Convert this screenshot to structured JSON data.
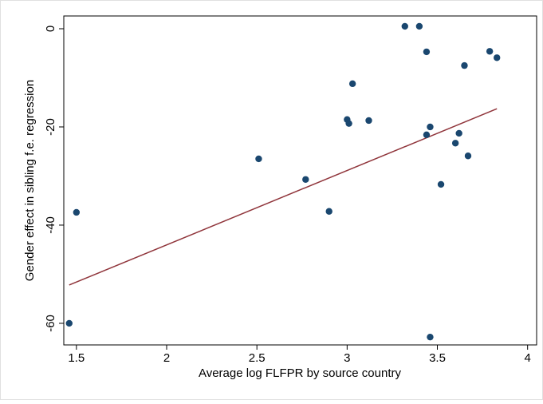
{
  "chart_data": {
    "type": "scatter",
    "x_label": "Average log FLFPR by source country",
    "y_label": "Gender effect in sibling f.e. regression",
    "xlim": [
      1.43,
      4.05
    ],
    "ylim": [
      -64.4,
      2.6
    ],
    "xticks": [
      1.5,
      2,
      2.5,
      3,
      3.5,
      4
    ],
    "yticks": [
      0,
      -20,
      -40,
      -60
    ],
    "points": {
      "color": "#1a476f",
      "x": [
        1.5,
        1.46,
        2.51,
        2.77,
        2.9,
        3.0,
        3.01,
        3.03,
        3.12,
        3.32,
        3.4,
        3.44,
        3.44,
        3.46,
        3.46,
        3.52,
        3.6,
        3.62,
        3.65,
        3.67,
        3.79,
        3.83
      ],
      "values": [
        -37.4,
        -60,
        -26.5,
        -30.7,
        -37.2,
        -18.5,
        -19.3,
        -11.2,
        -18.7,
        0.5,
        0.5,
        -4.7,
        -21.6,
        -20,
        -62.8,
        -31.7,
        -23.3,
        -21.3,
        -7.5,
        -25.9,
        -4.6,
        -5.9
      ]
    },
    "fit": {
      "color": "#90353b",
      "x": [
        1.46,
        3.83
      ],
      "values": [
        -52.2,
        -16.3
      ]
    }
  }
}
